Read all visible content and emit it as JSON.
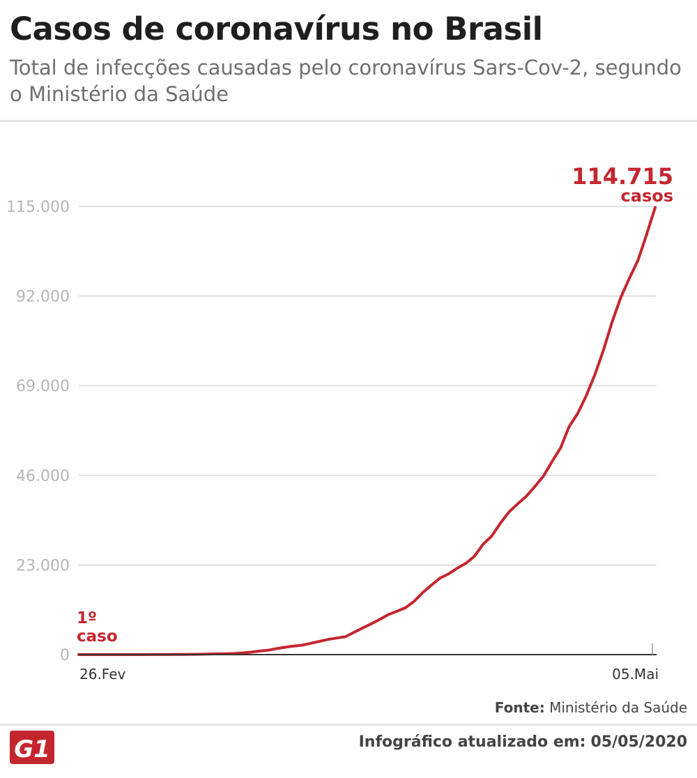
{
  "header": {
    "title": "Casos de coronavírus no Brasil",
    "subtitle": "Total de infecções causadas pelo coronavírus Sars-Cov-2, segundo o Ministério da Saúde"
  },
  "chart_data": {
    "type": "line",
    "title": "Casos de coronavírus no Brasil",
    "xlabel": "",
    "ylabel": "",
    "x_start": "26.Fev",
    "x_end": "05.Mai",
    "x_tick_labels": [
      "26.Fev",
      "05.Mai"
    ],
    "ylim": [
      0,
      115000
    ],
    "y_tick_labels": [
      "0",
      "23.000",
      "46.000",
      "69.000",
      "92.000",
      "115.000"
    ],
    "y_ticks": [
      0,
      23000,
      46000,
      69000,
      92000,
      115000
    ],
    "grid": true,
    "series_color": "#c4262e",
    "series": [
      {
        "values": [
          1,
          1,
          1,
          2,
          2,
          2,
          3,
          8,
          13,
          25,
          25,
          34,
          52,
          77,
          98,
          121,
          200,
          234,
          291,
          428,
          621,
          904,
          1128,
          1546,
          1891,
          2201,
          2433,
          2915,
          3417,
          3904,
          4256,
          4579,
          5717,
          6836,
          7910,
          9056,
          10278,
          11130,
          12056,
          13717,
          15927,
          17857,
          19638,
          20727,
          22169,
          23430,
          25262,
          28320,
          30425,
          33682,
          36599,
          38654,
          40581,
          43079,
          45757,
          49492,
          52995,
          58509,
          61888,
          66501,
          71886,
          78162,
          85380,
          91589,
          96559,
          101147,
          107780,
          114715
        ]
      }
    ],
    "annotations": [
      {
        "text": "1º",
        "text2": "caso"
      },
      {
        "text": "114.715",
        "text2": "casos"
      }
    ]
  },
  "footer": {
    "source_label": "Fonte:",
    "source_value": "Ministério da Saúde",
    "updated_label": "Infográfico atualizado em:",
    "updated_value": "05/05/2020",
    "logo_text": "G1",
    "logo_color": "#c4262e"
  }
}
